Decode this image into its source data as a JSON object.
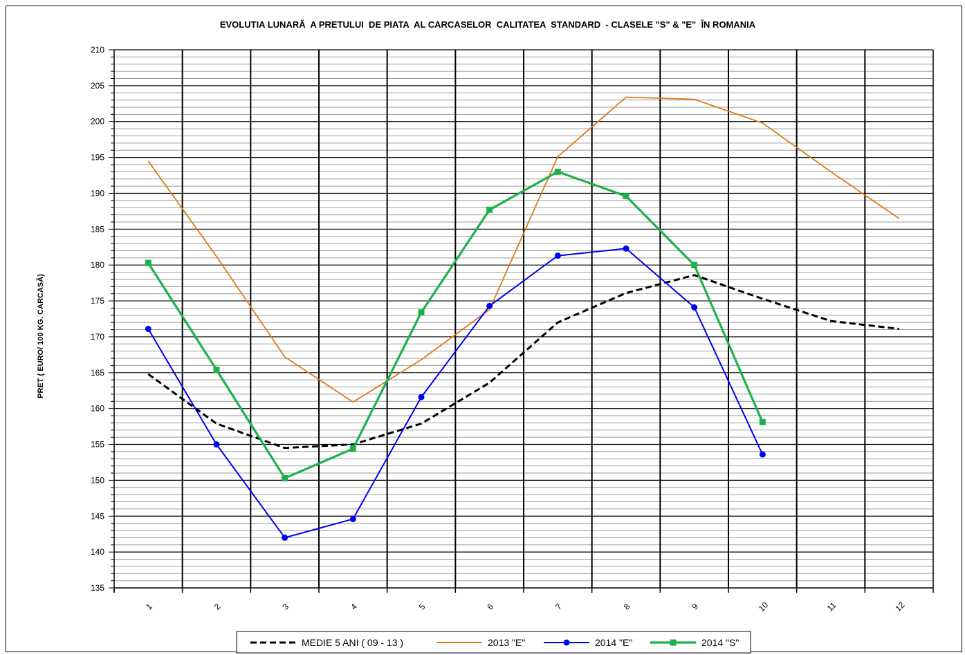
{
  "chart_data": {
    "type": "line",
    "title": "EVOLUTIA LUNARĂ  A PRETULUI  DE PIATA  AL CARCASELOR  CALITATEA  STANDARD  - CLASELE \"S\" & \"E\"  ÎN ROMANIA",
    "xlabel": "",
    "ylabel": "PRET ( EURO/ 100 KG. CARCASĂ)",
    "categories": [
      "1",
      "2",
      "3",
      "4",
      "5",
      "6",
      "7",
      "8",
      "9",
      "10",
      "11",
      "12"
    ],
    "ylim": [
      135,
      210
    ],
    "y_ticks": [
      135,
      140,
      145,
      150,
      155,
      160,
      165,
      170,
      175,
      180,
      185,
      190,
      195,
      200,
      205,
      210
    ],
    "grid": true,
    "legend_position": "bottom",
    "series": [
      {
        "name": "MEDIE 5 ANI ( 09 - 13 )",
        "color": "#000000",
        "style": "dashed",
        "marker": "none",
        "values": [
          164.8,
          157.9,
          154.5,
          155.0,
          157.9,
          163.6,
          172.0,
          176.1,
          178.6,
          175.3,
          172.2,
          171.1
        ]
      },
      {
        "name": "2013 \"E\"",
        "color": "#e07818",
        "style": "solid",
        "marker": "none",
        "values": [
          194.5,
          181.2,
          167.2,
          160.9,
          166.8,
          173.8,
          195.1,
          203.4,
          203.1,
          199.8,
          193.0,
          186.5
        ]
      },
      {
        "name": "2014 \"E\"",
        "color": "#0000ee",
        "style": "solid",
        "marker": "circle",
        "values": [
          171.1,
          155.0,
          142.0,
          144.6,
          161.6,
          174.3,
          181.3,
          182.3,
          174.1,
          153.6,
          null,
          null
        ]
      },
      {
        "name": "2014 \"S\"",
        "color": "#1fb04b",
        "style": "solid",
        "marker": "square",
        "values": [
          180.3,
          165.4,
          150.3,
          154.4,
          173.4,
          187.7,
          193.0,
          189.6,
          180.0,
          158.1,
          null,
          null
        ]
      }
    ]
  }
}
